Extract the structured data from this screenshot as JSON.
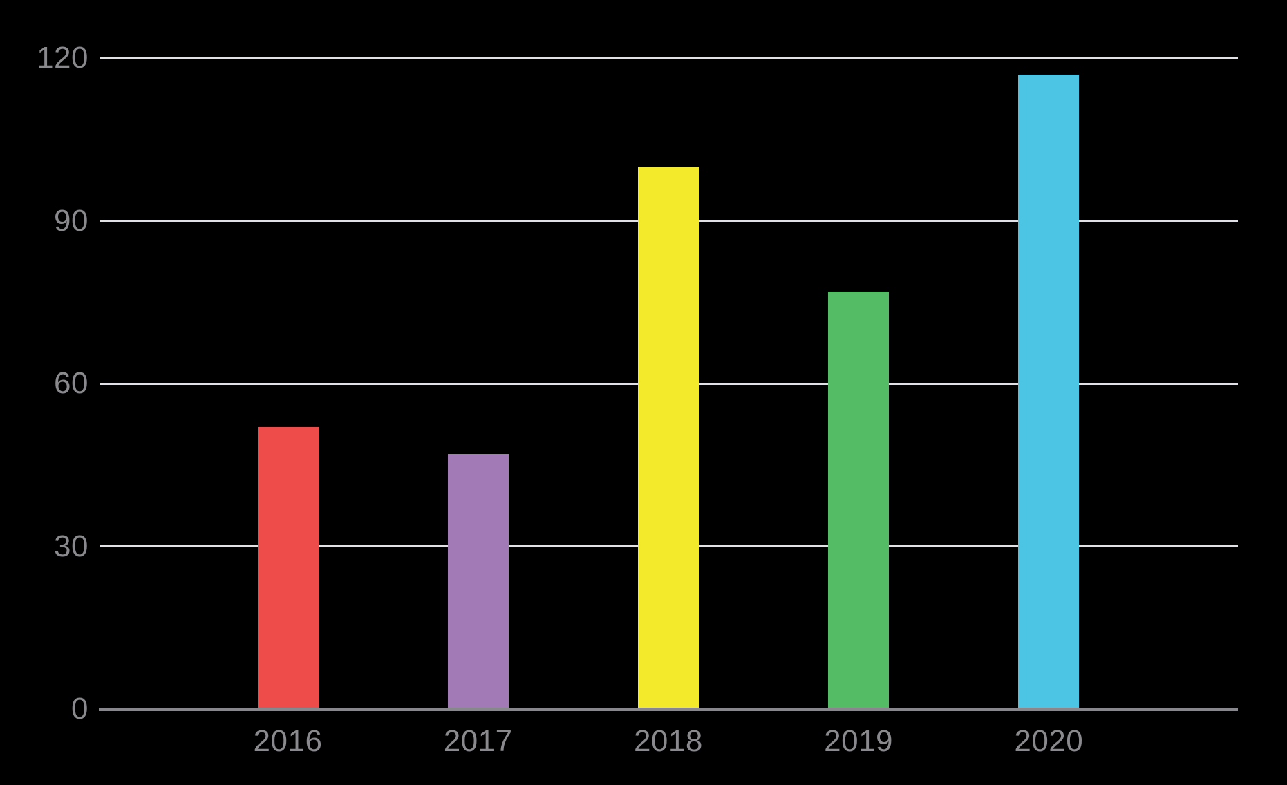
{
  "chart_data": {
    "type": "bar",
    "categories": [
      "2016",
      "2017",
      "2018",
      "2019",
      "2020"
    ],
    "values": [
      52,
      47,
      100,
      77,
      117
    ],
    "bar_colors": [
      "#ee4b4b",
      "#a17ab6",
      "#f2ea2b",
      "#55bc66",
      "#4bc5e3"
    ],
    "title": "",
    "xlabel": "",
    "ylabel": "",
    "ylim": [
      0,
      120
    ],
    "yticks": [
      0,
      30,
      60,
      90,
      120
    ],
    "grid": true,
    "legend": "none",
    "background_color": "#000000",
    "gridline_color": "#e1e1e5",
    "axis_line_color": "#88888c",
    "label_color": "#8a8a8e"
  }
}
